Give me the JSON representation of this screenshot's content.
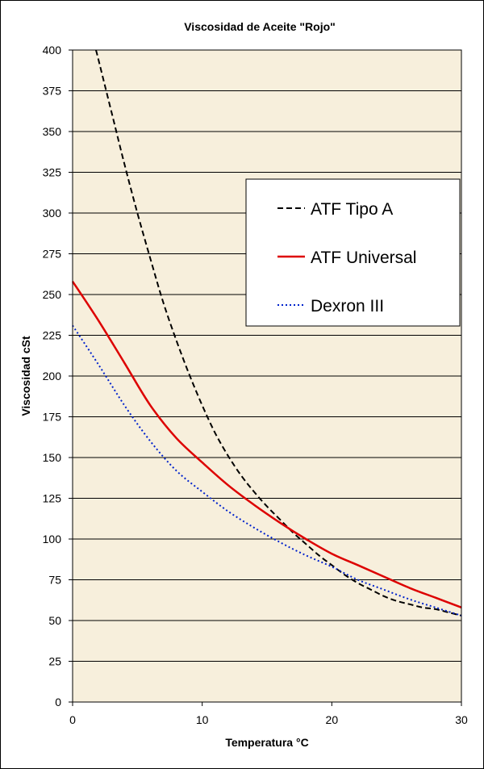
{
  "chart_data": {
    "type": "line",
    "title": "Viscosidad de Aceite \"Rojo\"",
    "xlabel": "Temperatura °C",
    "ylabel": "Viscosidad cSt",
    "xlim": [
      0,
      30
    ],
    "ylim": [
      0,
      400
    ],
    "x_ticks": [
      0,
      10,
      20,
      30
    ],
    "y_ticks": [
      0,
      25,
      50,
      75,
      100,
      125,
      150,
      175,
      200,
      225,
      250,
      275,
      300,
      325,
      350,
      375,
      400
    ],
    "grid": "horizontal",
    "legend_position": "right",
    "plot_background": "#f7efdc",
    "series": [
      {
        "name": "ATF Tipo A",
        "color": "#000000",
        "style": "dashed",
        "x": [
          1.8,
          2,
          3,
          4,
          5,
          6,
          7,
          8,
          9,
          10,
          11,
          12,
          13,
          14,
          15,
          16,
          17,
          18,
          19,
          20,
          21,
          22,
          23,
          24,
          25,
          26,
          27,
          28,
          29,
          30
        ],
        "y": [
          400,
          394,
          362,
          330,
          300,
          272,
          245,
          222,
          201,
          182,
          165,
          151,
          139,
          129,
          120,
          112,
          104,
          97,
          90,
          84,
          78,
          73,
          69,
          65,
          62,
          60,
          58,
          57,
          55,
          53
        ]
      },
      {
        "name": "ATF Universal",
        "color": "#dd0000",
        "style": "solid",
        "x": [
          0,
          2,
          4,
          6,
          8,
          10,
          12,
          14,
          16,
          18,
          20,
          22,
          24,
          26,
          28,
          30
        ],
        "y": [
          258,
          234,
          208,
          182,
          162,
          147,
          133,
          121,
          110,
          100,
          91,
          84,
          77,
          70,
          64,
          58
        ]
      },
      {
        "name": "Dexron III",
        "color": "#0022cc",
        "style": "dotted",
        "x": [
          0,
          2,
          4,
          6,
          8,
          10,
          12,
          14,
          16,
          18,
          20,
          22,
          24,
          26,
          28,
          30
        ],
        "y": [
          231,
          207,
          182,
          160,
          142,
          129,
          117,
          107,
          98,
          90,
          83,
          75,
          69,
          63,
          58,
          53
        ]
      }
    ]
  }
}
